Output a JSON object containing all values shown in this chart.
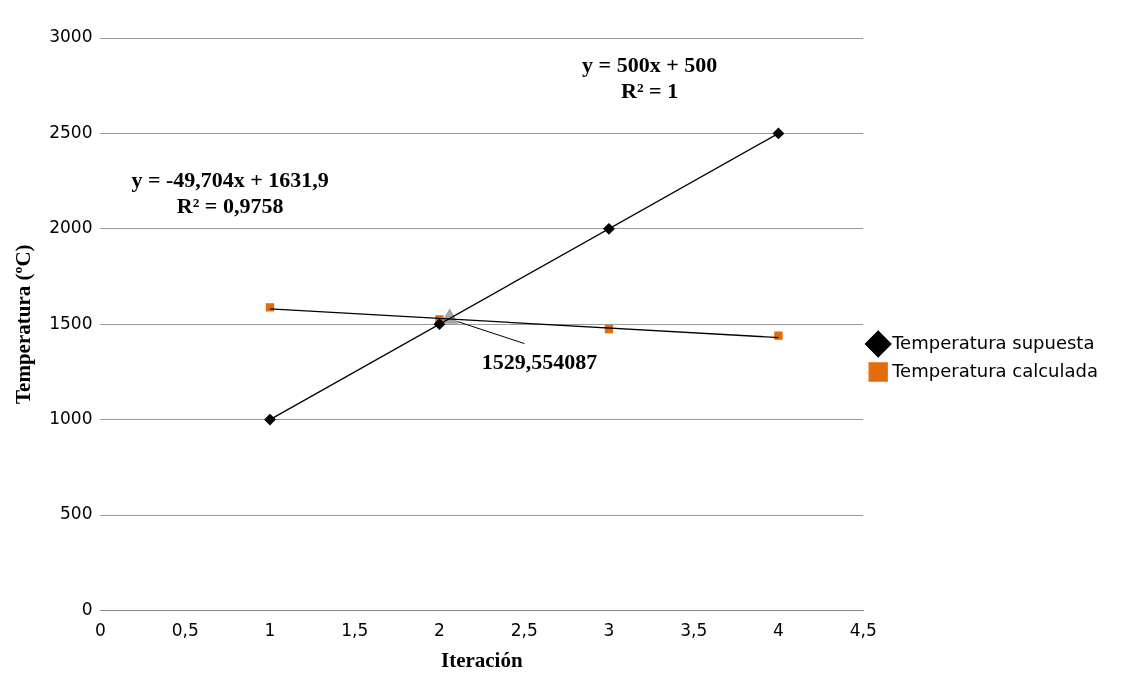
{
  "chart_data": {
    "type": "scatter",
    "xlabel": "Iteración",
    "ylabel": "Temperatura (ºC)",
    "xlim": [
      0,
      4.5
    ],
    "xticks": [
      0,
      {
        "value": 0.5,
        "label": "0,5"
      },
      1,
      {
        "value": 1.5,
        "label": "1,5"
      },
      2,
      {
        "value": 2.5,
        "label": "2,5"
      },
      3,
      {
        "value": 3.5,
        "label": "3,5"
      },
      4,
      {
        "value": 4.5,
        "label": "4,5"
      }
    ],
    "ylim": [
      0,
      3000
    ],
    "yticks": [
      0,
      500,
      1000,
      1500,
      2000,
      2500,
      3000
    ],
    "grid": "y",
    "legend": "right",
    "series": [
      {
        "name": "Temperatura supuesta",
        "color": "#000000",
        "marker": "diamond",
        "x": [
          1,
          2,
          3,
          4
        ],
        "values": [
          1000,
          1500,
          2000,
          2500
        ]
      },
      {
        "name": "Temperatura calculada",
        "color": "#e46c0a",
        "marker": "square",
        "x": [
          1,
          2,
          3,
          4
        ],
        "values": [
          1588,
          1525,
          1474,
          1440
        ]
      },
      {
        "type": "line",
        "color": "#000000",
        "marker": "none",
        "x": [
          1,
          4
        ],
        "values": [
          1000,
          2500
        ]
      },
      {
        "type": "line",
        "color": "#000000",
        "marker": "none",
        "x": [
          1,
          4
        ],
        "values": [
          1580,
          1430
        ]
      },
      {
        "color": "#a5a5a5",
        "marker": "triangle",
        "x": [
          2.06
        ],
        "values": [
          1530
        ]
      }
    ],
    "annotations": [
      "y = 500x + 500\nR² = 1",
      "y = -49,704x + 1631,9\nR² = 0,9758",
      {
        "text": "1529,554087",
        "x": 2.059,
        "y": 1529.55
      }
    ]
  }
}
